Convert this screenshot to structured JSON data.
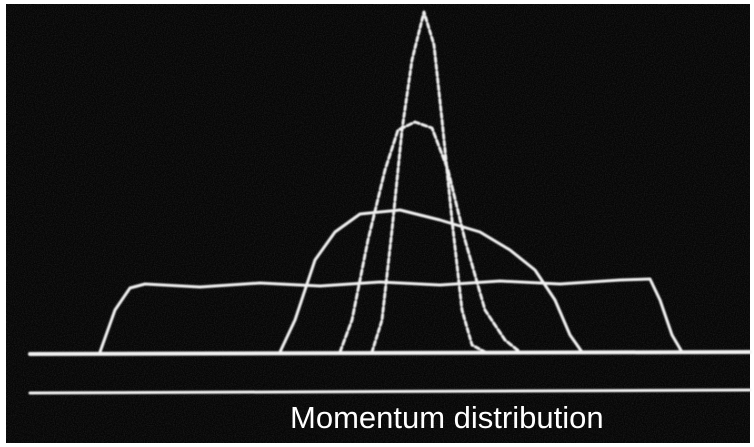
{
  "caption": "Momentum distribution"
}
